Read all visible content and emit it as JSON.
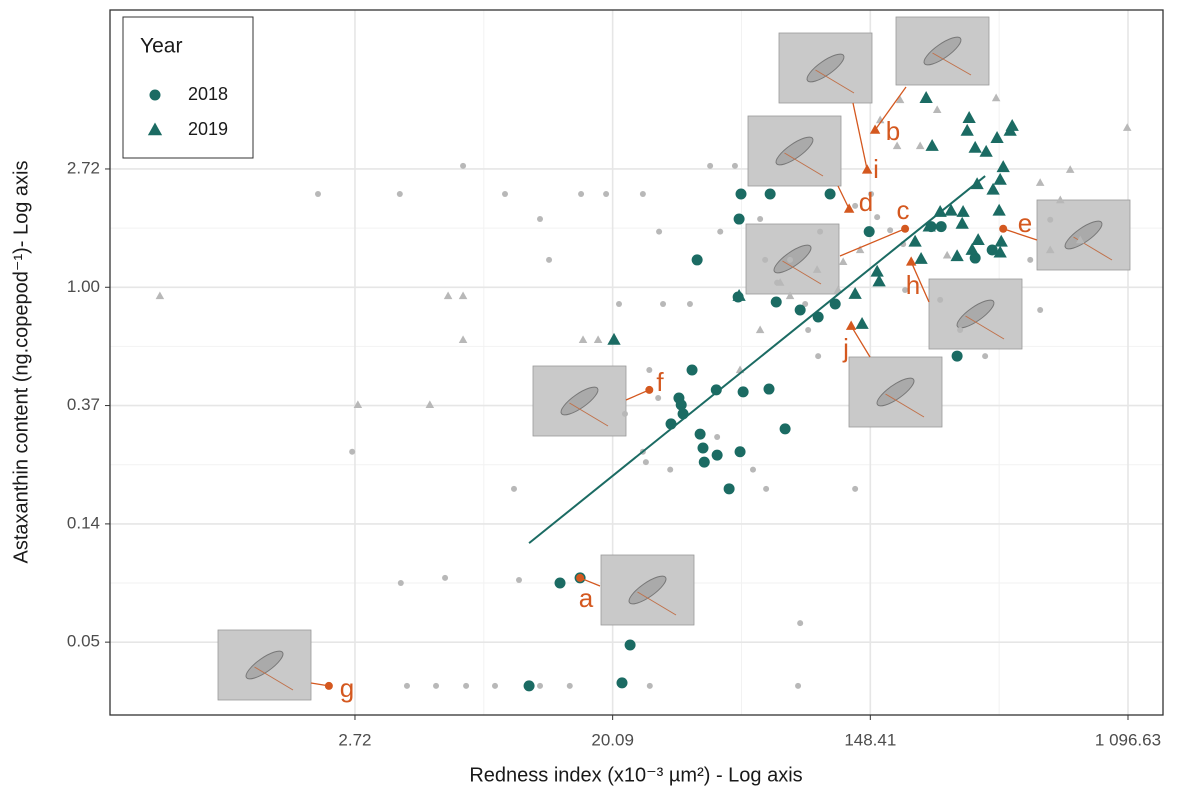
{
  "chart_data": {
    "type": "scatter",
    "x_label": "Redness index (x10⁻³ µm²) - Log axis",
    "y_label": "Astaxanthin content (ng.copepod⁻¹)- Log axis",
    "xscale": "log",
    "yscale": "log",
    "grid": true,
    "xlim": [
      0.406,
      1439
    ],
    "ylim": [
      0.0269,
      10.42
    ],
    "xticks": [
      {
        "value": 2.7183,
        "label": "2.72"
      },
      {
        "value": 20.086,
        "label": "20.09"
      },
      {
        "value": 148.41,
        "label": "148.41"
      },
      {
        "value": 1096.63,
        "label": "1 096.63"
      }
    ],
    "yticks": [
      {
        "value": 0.0498,
        "label": "0.05"
      },
      {
        "value": 0.1353,
        "label": "0.14"
      },
      {
        "value": 0.3679,
        "label": "0.37"
      },
      {
        "value": 1,
        "label": "1.00"
      },
      {
        "value": 2.7183,
        "label": "2.72"
      }
    ],
    "legend": {
      "title": "Year",
      "position": "top-left"
    },
    "series": [
      {
        "marker": "circle",
        "color": "#b8b8b8",
        "x": [
          2.04,
          3.85,
          6.29,
          2.66,
          3.88,
          5.47,
          5.1,
          6.44,
          4.07,
          8.06,
          9.34,
          8.71,
          11.43,
          12.26,
          15.72,
          19.09,
          25.4,
          28.8,
          29.7,
          21.1,
          36.6,
          26.7,
          28.6,
          25.4,
          26.0,
          22.1,
          9.71,
          11.43,
          14.4,
          26.8,
          46.3,
          42.8,
          51.9,
          63.1,
          79.6,
          89.5,
          91.6,
          99.0,
          131.9,
          86.1,
          84.7,
          66.1,
          59.7,
          45.2,
          31.4,
          156.5,
          173.1,
          194.4,
          255.2,
          297.9,
          361.8,
          554.6,
          513.5,
          599.7,
          191.5,
          100.5,
          72.0,
          65.6,
          131.9,
          149.3
        ],
        "values": [
          2.2,
          2.2,
          2.79,
          0.249,
          0.0821,
          0.0857,
          0.0344,
          0.0344,
          0.0344,
          0.0344,
          0.182,
          2.2,
          1.78,
          1.26,
          2.2,
          2.2,
          2.2,
          1.6,
          0.868,
          0.868,
          0.868,
          0.497,
          0.392,
          0.249,
          0.228,
          0.343,
          0.0842,
          0.0344,
          0.0344,
          0.0344,
          1.6,
          2.79,
          2.79,
          1.78,
          1.26,
          0.868,
          0.697,
          0.559,
          0.182,
          0.0585,
          0.0344,
          0.182,
          0.214,
          0.282,
          0.214,
          1.81,
          1.62,
          0.977,
          0.899,
          0.697,
          0.559,
          0.825,
          1.26,
          1.77,
          1.44,
          1.6,
          1.04,
          1.26,
          1.99,
          2.2
        ]
      },
      {
        "marker": "triangle",
        "color": "#b8b8b8",
        "x": [
          0.598,
          2.78,
          4.86,
          6.29,
          5.6,
          6.29,
          15.96,
          17.94,
          54.0,
          63.1,
          73.7,
          79.6,
          98.2,
          120.2,
          137.1,
          160.2,
          187.0,
          249.4,
          394.1,
          648.4,
          700.2,
          1090,
          599.7,
          757.0,
          182.7,
          218.5,
          554.6,
          269.4,
          160.2,
          115.6
        ],
        "values": [
          0.929,
          0.37,
          0.37,
          0.641,
          0.929,
          0.929,
          0.641,
          0.641,
          0.497,
          0.697,
          1.04,
          0.929,
          1.16,
          1.24,
          1.37,
          4.11,
          4.87,
          4.48,
          4.95,
          2.09,
          2.7,
          3.85,
          1.37,
          1.49,
          3.3,
          3.3,
          2.42,
          1.31,
          1.04,
          0.977
        ]
      },
      {
        "name": "2018",
        "marker": "circle",
        "color": "#1b6b63",
        "x": [
          10.5,
          13.35,
          15.6,
          23.0,
          21.6,
          38.7,
          54.4,
          53.6,
          68.2,
          108.6,
          147.1,
          237.9,
          291.1,
          37.2,
          33.6,
          34.2,
          34.7,
          31.6,
          39.6,
          40.5,
          40.9,
          45.2,
          44.9,
          55.3,
          54.0,
          67.6,
          76.6,
          49.6,
          53.2,
          71.5,
          86.1,
          99.0,
          113.0,
          257.2,
          334.9,
          382.2
        ],
        "values": [
          0.0344,
          0.0821,
          0.0857,
          0.0486,
          0.0353,
          1.26,
          2.2,
          1.78,
          2.2,
          2.2,
          1.6,
          1.67,
          0.559,
          0.497,
          0.392,
          0.37,
          0.343,
          0.315,
          0.289,
          0.257,
          0.228,
          0.242,
          0.42,
          0.413,
          0.249,
          0.423,
          0.302,
          0.182,
          0.921,
          0.883,
          0.825,
          0.778,
          0.868,
          1.67,
          1.28,
          1.37
        ]
      },
      {
        "name": "2019",
        "marker": "triangle",
        "color": "#1b6b63",
        "x": [
          20.3,
          53.6,
          131.9,
          139.2,
          156.5,
          158.9,
          220.1,
          228.9,
          239.8,
          210.1,
          255.2,
          277.7,
          304.9,
          319.6,
          314.8,
          334.9,
          340.0,
          364.7,
          396.9,
          403.4,
          410.0,
          439.4,
          446.4,
          416.3,
          406.6,
          384.9,
          342.7,
          327.1,
          302.8,
          291.1,
          234.4,
          406.6
        ],
        "values": [
          0.641,
          0.929,
          0.945,
          0.733,
          1.14,
          1.05,
          1.27,
          4.95,
          3.3,
          1.47,
          1.89,
          1.91,
          1.89,
          4.18,
          3.75,
          3.25,
          2.39,
          3.14,
          3.53,
          1.91,
          1.47,
          3.75,
          3.91,
          2.76,
          2.48,
          2.28,
          1.49,
          1.37,
          1.71,
          1.3,
          1.67,
          1.34
        ]
      },
      {
        "marker": "line",
        "color": "#1b6b63",
        "x": [
          10.5,
          361.8
        ],
        "values": [
          0.115,
          2.56
        ]
      }
    ],
    "annotation_color": "#d4581f",
    "annotations": [
      {
        "label": "a",
        "marker": "circle",
        "x": 15.6,
        "y": 0.0857
      },
      {
        "label": "b",
        "marker": "triangle",
        "x": 154.0,
        "y": 3.78
      },
      {
        "label": "c",
        "marker": "circle",
        "x": 194.4,
        "y": 1.64
      },
      {
        "label": "d",
        "marker": "triangle",
        "x": 125.9,
        "y": 1.94
      },
      {
        "label": "e",
        "marker": "circle",
        "x": 416.3,
        "y": 1.64
      },
      {
        "label": "f",
        "marker": "circle",
        "x": 26.7,
        "y": 0.42
      },
      {
        "label": "g",
        "marker": "circle",
        "x": 2.22,
        "y": 0.0344
      },
      {
        "label": "h",
        "marker": "triangle",
        "x": 203.8,
        "y": 1.24
      },
      {
        "label": "i",
        "marker": "triangle",
        "x": 144.8,
        "y": 2.7
      },
      {
        "label": "j",
        "marker": "triangle",
        "x": 127.9,
        "y": 0.721
      }
    ]
  }
}
